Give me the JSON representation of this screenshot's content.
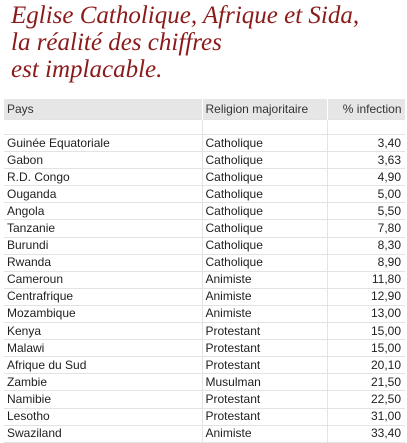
{
  "title": {
    "line1": "Eglise Catholique, Afrique et Sida,",
    "line2": "la réalité des chiffres",
    "line3": "est implacable."
  },
  "table": {
    "headers": [
      "Pays",
      "Religion majoritaire",
      "% infection"
    ],
    "rows": [
      [
        "Guinée Equatoriale",
        "Catholique",
        "3,40"
      ],
      [
        "Gabon",
        "Catholique",
        "3,63"
      ],
      [
        "R.D. Congo",
        "Catholique",
        "4,90"
      ],
      [
        "Ouganda",
        "Catholique",
        "5,00"
      ],
      [
        "Angola",
        "Catholique",
        "5,50"
      ],
      [
        "Tanzanie",
        "Catholique",
        "7,80"
      ],
      [
        "Burundi",
        "Catholique",
        "8,30"
      ],
      [
        "Rwanda",
        "Catholique",
        "8,90"
      ],
      [
        "Cameroun",
        "Animiste",
        "11,80"
      ],
      [
        "Centrafrique",
        "Animiste",
        "12,90"
      ],
      [
        "Mozambique",
        "Animiste",
        "13,00"
      ],
      [
        "Kenya",
        "Protestant",
        "15,00"
      ],
      [
        "Malawi",
        "Protestant",
        "15,00"
      ],
      [
        "Afrique du Sud",
        "Protestant",
        "20,10"
      ],
      [
        "Zambie",
        "Musulman",
        "21,50"
      ],
      [
        "Namibie",
        "Protestant",
        "22,50"
      ],
      [
        "Lesotho",
        "Protestant",
        "31,00"
      ],
      [
        "Swaziland",
        "Animiste",
        "33,40"
      ]
    ]
  }
}
